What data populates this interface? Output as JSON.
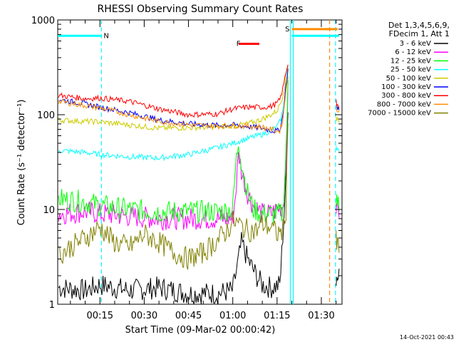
{
  "chart_data": {
    "type": "line",
    "title": "RHESSI Observing Summary Count Rates",
    "xlabel": "Start Time (09-Mar-02 00:00:42)",
    "ylabel": "Count Rate (s⁻¹ detector⁻¹)",
    "y_scale": "log",
    "ylim": [
      1,
      1000
    ],
    "xlim_minutes": [
      0.7,
      97
    ],
    "y_ticks": [
      "1",
      "10",
      "100",
      "1000"
    ],
    "x_ticks": [
      {
        "label": "00:15",
        "min": 15
      },
      {
        "label": "00:30",
        "min": 30
      },
      {
        "label": "00:45",
        "min": 45
      },
      {
        "label": "01:00",
        "min": 60
      },
      {
        "label": "01:15",
        "min": 75
      },
      {
        "label": "01:30",
        "min": 90
      }
    ],
    "legend_header": [
      "Det 1,3,4,5,6,9,",
      "FDecim 1, Att 1"
    ],
    "series": [
      {
        "name": "3 - 6 keV",
        "color": "#000000",
        "x": [
          1,
          10,
          15,
          25,
          35,
          45,
          55,
          60,
          62,
          63,
          65,
          68,
          70,
          73,
          76,
          78,
          79
        ],
        "y": [
          1.5,
          1.4,
          1.6,
          1.4,
          1.5,
          1.3,
          1.3,
          1.4,
          3.0,
          4.5,
          3.0,
          2.0,
          1.6,
          1.5,
          1.6,
          20,
          300
        ]
      },
      {
        "name": "6 - 12 keV",
        "color": "#ff00ff",
        "x": [
          1,
          10,
          15,
          25,
          35,
          45,
          55,
          60,
          61,
          62,
          63,
          65,
          67,
          70,
          73,
          75,
          77,
          78,
          79
        ],
        "y": [
          9,
          9.5,
          9,
          8.5,
          8,
          8,
          8,
          8,
          15,
          40,
          25,
          15,
          11,
          9,
          9,
          10,
          11,
          30,
          350
        ]
      },
      {
        "name": "12 - 25 keV",
        "color": "#00ff00",
        "x": [
          1,
          10,
          15,
          25,
          35,
          45,
          55,
          60,
          61,
          62,
          63,
          65,
          67,
          70,
          73,
          75,
          77,
          78,
          79
        ],
        "y": [
          13,
          12,
          11,
          10,
          9.5,
          9.5,
          9.5,
          10,
          30,
          55,
          30,
          15,
          10,
          9,
          9,
          9,
          9,
          40,
          380
        ]
      },
      {
        "name": "25 - 50 keV",
        "color": "#00ffff",
        "x": [
          1,
          10,
          15,
          25,
          35,
          45,
          55,
          60,
          65,
          70,
          73,
          75,
          76,
          77,
          78,
          79
        ],
        "y": [
          42,
          40,
          38,
          36,
          35,
          38,
          45,
          50,
          56,
          62,
          68,
          75,
          85,
          110,
          200,
          380
        ]
      },
      {
        "name": "50 - 100 keV",
        "color": "#cccc00",
        "x": [
          1,
          10,
          15,
          25,
          35,
          45,
          55,
          60,
          65,
          70,
          73,
          75,
          76,
          77,
          78,
          79
        ],
        "y": [
          88,
          85,
          84,
          78,
          72,
          73,
          74,
          76,
          80,
          90,
          100,
          110,
          130,
          160,
          250,
          380
        ]
      },
      {
        "name": "100 - 300 keV",
        "color": "#0000ff",
        "x": [
          1,
          10,
          15,
          25,
          35,
          45,
          55,
          60,
          65,
          70,
          73,
          75,
          76,
          77,
          78,
          79
        ],
        "y": [
          145,
          130,
          120,
          105,
          88,
          80,
          77,
          78,
          75,
          72,
          68,
          67,
          70,
          100,
          200,
          350
        ]
      },
      {
        "name": "300 - 800 keV",
        "color": "#ff0000",
        "x": [
          1,
          10,
          15,
          25,
          35,
          45,
          55,
          60,
          65,
          70,
          73,
          75,
          76,
          77,
          78,
          79
        ],
        "y": [
          160,
          148,
          150,
          138,
          115,
          100,
          102,
          115,
          120,
          120,
          122,
          132,
          145,
          190,
          280,
          380
        ]
      },
      {
        "name": "800 - 7000 keV",
        "color": "#ff8c00",
        "x": [
          1,
          10,
          15,
          25,
          35,
          45,
          55,
          60,
          65,
          70,
          73,
          75,
          76,
          77,
          78,
          79
        ],
        "y": [
          138,
          125,
          118,
          100,
          85,
          78,
          76,
          77,
          76,
          74,
          70,
          67,
          68,
          90,
          180,
          320
        ]
      },
      {
        "name": "7000 - 15000 keV",
        "color": "#808000",
        "x": [
          1,
          5,
          10,
          15,
          20,
          25,
          30,
          35,
          40,
          45,
          50,
          55,
          58,
          60,
          62,
          65,
          68,
          70,
          73,
          75,
          77,
          78,
          79
        ],
        "y": [
          3.3,
          4,
          5,
          6.5,
          4.5,
          4,
          5.5,
          4.5,
          3.5,
          3,
          3.5,
          4.8,
          6,
          7.5,
          7,
          6,
          6,
          7,
          6.5,
          5.5,
          6,
          10,
          200
        ]
      }
    ],
    "after_gap_series": [
      {
        "name": "3 - 6 keV",
        "color": "#000000",
        "x": [
          95,
          96
        ],
        "y": [
          2,
          1.8
        ]
      },
      {
        "name": "6 - 12 keV",
        "color": "#ff00ff",
        "x": [
          95,
          96
        ],
        "y": [
          10,
          9
        ]
      },
      {
        "name": "12 - 25 keV",
        "color": "#00ff00",
        "x": [
          95,
          96
        ],
        "y": [
          12,
          10
        ]
      },
      {
        "name": "25 - 50 keV",
        "color": "#00ffff",
        "x": [
          95,
          96
        ],
        "y": [
          45,
          42
        ]
      },
      {
        "name": "50 - 100 keV",
        "color": "#cccc00",
        "x": [
          95,
          96
        ],
        "y": [
          90,
          85
        ]
      },
      {
        "name": "100 - 300 keV",
        "color": "#0000ff",
        "x": [
          95,
          96
        ],
        "y": [
          130,
          110
        ]
      },
      {
        "name": "300 - 800 keV",
        "color": "#ff0000",
        "x": [
          95,
          96
        ],
        "y": [
          135,
          120
        ]
      },
      {
        "name": "800 - 7000 keV",
        "color": "#ff8c00",
        "x": [
          95,
          96
        ],
        "y": [
          120,
          105
        ]
      },
      {
        "name": "7000 - 15000 keV",
        "color": "#808000",
        "x": [
          95,
          96
        ],
        "y": [
          5,
          4
        ]
      }
    ],
    "flags": [
      {
        "label": "N",
        "color": "#00ffff",
        "x_start": 0.7,
        "x_end": 15.5,
        "y": 680,
        "label_x": 15.5
      },
      {
        "label": "F",
        "color": "#ff0000",
        "x_start": 62,
        "x_end": 69,
        "y": 560,
        "label_x": 60.5
      },
      {
        "label": "S",
        "color": "#ff8c00",
        "x_start": 80,
        "x_end": 95.5,
        "y": 800,
        "label_x": 77
      },
      {
        "label": "",
        "color": "#00ffff",
        "x_start": 80,
        "x_end": 96,
        "y": 680,
        "label_x": 80
      }
    ],
    "vlines": [
      {
        "x": 15.5,
        "color": "#00ffff",
        "style": "dashed"
      },
      {
        "x": 79.5,
        "color": "#00ffff",
        "style": "solid"
      },
      {
        "x": 80.5,
        "color": "#00ffff",
        "style": "solid"
      },
      {
        "x": 92.8,
        "color": "#ff8c00",
        "style": "dashed"
      },
      {
        "x": 94.8,
        "color": "#00ffff",
        "style": "dashed"
      }
    ],
    "timestamp": "14-Oct-2021 00:43"
  }
}
